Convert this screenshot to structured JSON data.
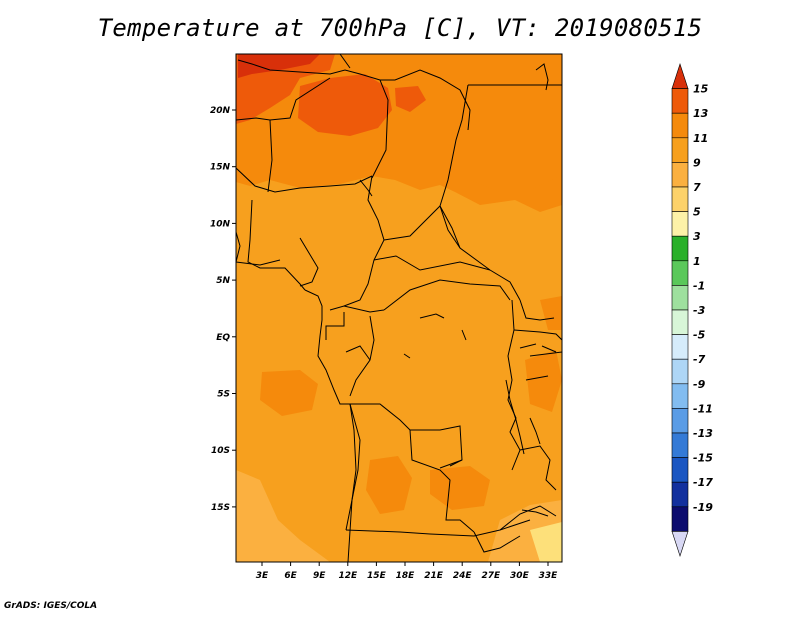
{
  "title": "Temperature at 700hPa [C], VT: 2019080515",
  "credit": "GrADS: IGES/COLA",
  "map": {
    "lon_ticks": [
      "3E",
      "6E",
      "9E",
      "12E",
      "15E",
      "18E",
      "21E",
      "24E",
      "27E",
      "30E",
      "33E"
    ],
    "lat_ticks": [
      "20N",
      "15N",
      "10N",
      "5N",
      "EQ",
      "5S",
      "10S",
      "15S"
    ],
    "fill_colors": {
      "t7_9": "#fbb040",
      "t9_11": "#f7a01e",
      "t11_13": "#f58a0c",
      "t13_15": "#ee5a0a",
      "t15_plus": "#d8300a",
      "t5_7": "#fde07a"
    }
  },
  "colorbar": {
    "labels": [
      "15",
      "13",
      "11",
      "9",
      "7",
      "5",
      "3",
      "1",
      "-1",
      "-3",
      "-5",
      "-7",
      "-9",
      "-11",
      "-13",
      "-15",
      "-17",
      "-19"
    ],
    "colors": [
      "#d8300a",
      "#ee5a0a",
      "#f58a0c",
      "#f7a01e",
      "#fbb040",
      "#fdd26a",
      "#fdf2a8",
      "#2ab02a",
      "#5ac85a",
      "#9ee09e",
      "#d8f6d8",
      "#d6ecfb",
      "#aed6f6",
      "#82bcf0",
      "#5a9ce6",
      "#347ad6",
      "#1a56c2",
      "#12309e",
      "#0c0c6e",
      "#d8d8f4"
    ]
  }
}
